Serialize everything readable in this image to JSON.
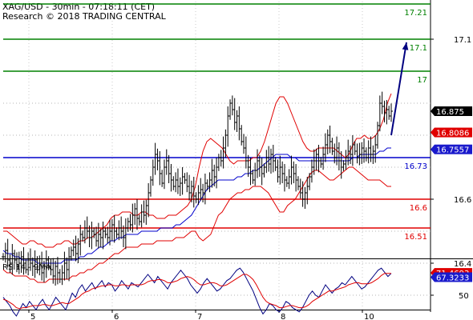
{
  "header": {
    "line1": "XAG/USD - 30min - 07:18:11 (CET)",
    "line2": "Research © 2018 TRADING CENTRAL"
  },
  "chart_data": [
    {
      "type": "candlestick",
      "title": "XAG/USD - 30min - 07:18:11 (CET)",
      "subtitle": "Research © 2018 TRADING CENTRAL",
      "x_tick_labels": [
        "5",
        "6",
        "7",
        "8",
        "10"
      ],
      "y_tick_labels": [
        "17.1",
        "16.6",
        "16.4"
      ],
      "ylim": [
        16.24,
        17.26
      ],
      "grid": true,
      "price_series": [
        16.42,
        16.44,
        16.41,
        16.4,
        16.43,
        16.41,
        16.39,
        16.4,
        16.42,
        16.4,
        16.38,
        16.41,
        16.4,
        16.39,
        16.41,
        16.38,
        16.4,
        16.37,
        16.39,
        16.41,
        16.39,
        16.38,
        16.36,
        16.39,
        16.37,
        16.35,
        16.37,
        16.4,
        16.38,
        16.42,
        16.44,
        16.45,
        16.43,
        16.46,
        16.49,
        16.48,
        16.51,
        16.5,
        16.48,
        16.5,
        16.49,
        16.47,
        16.49,
        16.48,
        16.5,
        16.49,
        16.48,
        16.5,
        16.52,
        16.5,
        16.49,
        16.51,
        16.5,
        16.48,
        16.51,
        16.53,
        16.52,
        16.55,
        16.57,
        16.54,
        16.53,
        16.56,
        16.55,
        16.58,
        16.62,
        16.66,
        16.7,
        16.74,
        16.72,
        16.68,
        16.65,
        16.7,
        16.72,
        16.68,
        16.66,
        16.64,
        16.66,
        16.64,
        16.65,
        16.67,
        16.66,
        16.64,
        16.62,
        16.64,
        16.61,
        16.6,
        16.62,
        16.63,
        16.62,
        16.65,
        16.64,
        16.66,
        16.69,
        16.67,
        16.7,
        16.73,
        16.72,
        16.76,
        16.8,
        16.86,
        16.9,
        16.88,
        16.84,
        16.86,
        16.82,
        16.78,
        16.76,
        16.72,
        16.7,
        16.68,
        16.66,
        16.69,
        16.72,
        16.7,
        16.68,
        16.7,
        16.73,
        16.71,
        16.74,
        16.72,
        16.7,
        16.67,
        16.7,
        16.68,
        16.66,
        16.65,
        16.67,
        16.7,
        16.68,
        16.66,
        16.64,
        16.62,
        16.6,
        16.62,
        16.64,
        16.67,
        16.7,
        16.72,
        16.74,
        16.72,
        16.71,
        16.74,
        16.77,
        16.8,
        16.78,
        16.75,
        16.73,
        16.76,
        16.72,
        16.7,
        16.71,
        16.73,
        16.75,
        16.74,
        16.77,
        16.75,
        16.73,
        16.74,
        16.76,
        16.75,
        16.73,
        16.76,
        16.74,
        16.75,
        16.77,
        16.83,
        16.9,
        16.89,
        16.87,
        16.88,
        16.86,
        16.875
      ],
      "bollinger": {
        "upper": [
          16.5,
          16.5,
          16.49,
          16.48,
          16.47,
          16.46,
          16.46,
          16.47,
          16.47,
          16.46,
          16.46,
          16.45,
          16.45,
          16.45,
          16.46,
          16.46,
          16.47,
          16.47,
          16.46,
          16.46,
          16.47,
          16.47,
          16.48,
          16.48,
          16.49,
          16.5,
          16.51,
          16.52,
          16.54,
          16.55,
          16.55,
          16.56,
          16.56,
          16.56,
          16.55,
          16.55,
          16.56,
          16.56,
          16.55,
          16.55,
          16.54,
          16.54,
          16.54,
          16.55,
          16.55,
          16.55,
          16.56,
          16.57,
          16.58,
          16.6,
          16.64,
          16.7,
          16.75,
          16.78,
          16.79,
          16.78,
          16.77,
          16.76,
          16.74,
          16.72,
          16.71,
          16.72,
          16.72,
          16.72,
          16.72,
          16.73,
          16.73,
          16.75,
          16.78,
          16.82,
          16.86,
          16.9,
          16.92,
          16.92,
          16.9,
          16.87,
          16.84,
          16.81,
          16.78,
          16.76,
          16.75,
          16.75,
          16.76,
          16.76,
          16.76,
          16.76,
          16.76,
          16.75,
          16.74,
          16.73,
          16.74,
          16.77,
          16.79,
          16.79,
          16.8,
          16.79,
          16.79,
          16.8,
          16.82,
          16.85,
          16.9,
          16.93
        ],
        "mid": [
          16.44,
          16.43,
          16.43,
          16.42,
          16.42,
          16.41,
          16.41,
          16.41,
          16.41,
          16.4,
          16.4,
          16.4,
          16.4,
          16.4,
          16.4,
          16.4,
          16.41,
          16.41,
          16.41,
          16.41,
          16.42,
          16.42,
          16.43,
          16.43,
          16.44,
          16.45,
          16.45,
          16.46,
          16.47,
          16.47,
          16.48,
          16.48,
          16.49,
          16.49,
          16.49,
          16.49,
          16.5,
          16.5,
          16.5,
          16.5,
          16.5,
          16.51,
          16.51,
          16.51,
          16.51,
          16.52,
          16.52,
          16.53,
          16.54,
          16.55,
          16.57,
          16.59,
          16.61,
          16.63,
          16.64,
          16.65,
          16.66,
          16.66,
          16.66,
          16.66,
          16.66,
          16.67,
          16.67,
          16.68,
          16.68,
          16.69,
          16.69,
          16.7,
          16.71,
          16.72,
          16.73,
          16.74,
          16.74,
          16.74,
          16.74,
          16.73,
          16.73,
          16.72,
          16.72,
          16.72,
          16.72,
          16.72,
          16.72,
          16.72,
          16.72,
          16.72,
          16.72,
          16.72,
          16.72,
          16.72,
          16.72,
          16.73,
          16.73,
          16.74,
          16.74,
          16.74,
          16.74,
          16.74,
          16.75,
          16.75,
          16.76,
          16.76
        ],
        "lower": [
          16.38,
          16.37,
          16.37,
          16.36,
          16.36,
          16.36,
          16.36,
          16.35,
          16.35,
          16.34,
          16.34,
          16.34,
          16.35,
          16.35,
          16.35,
          16.35,
          16.35,
          16.35,
          16.36,
          16.36,
          16.37,
          16.37,
          16.38,
          16.38,
          16.39,
          16.4,
          16.4,
          16.41,
          16.42,
          16.43,
          16.43,
          16.44,
          16.45,
          16.45,
          16.45,
          16.45,
          16.46,
          16.46,
          16.46,
          16.46,
          16.47,
          16.47,
          16.47,
          16.47,
          16.47,
          16.48,
          16.48,
          16.48,
          16.49,
          16.5,
          16.5,
          16.48,
          16.47,
          16.48,
          16.49,
          16.52,
          16.55,
          16.56,
          16.58,
          16.6,
          16.61,
          16.62,
          16.62,
          16.63,
          16.63,
          16.64,
          16.64,
          16.64,
          16.63,
          16.62,
          16.6,
          16.58,
          16.56,
          16.56,
          16.58,
          16.59,
          16.6,
          16.62,
          16.64,
          16.66,
          16.68,
          16.69,
          16.69,
          16.68,
          16.67,
          16.66,
          16.66,
          16.67,
          16.68,
          16.69,
          16.7,
          16.7,
          16.69,
          16.68,
          16.67,
          16.66,
          16.66,
          16.66,
          16.66,
          16.65,
          16.64,
          16.64
        ]
      },
      "horizontal_levels": [
        {
          "value": 17.21,
          "label": "17.21",
          "color": "#008000"
        },
        {
          "value": 17.1,
          "label": "17.1",
          "color": "#008000"
        },
        {
          "value": 17.0,
          "label": "17",
          "color": "#008000"
        },
        {
          "value": 16.73,
          "label": "16.73",
          "color": "#0000cc"
        },
        {
          "value": 16.6,
          "label": "16.6",
          "color": "#e00000"
        },
        {
          "value": 16.51,
          "label": "16.51",
          "color": "#e00000"
        }
      ],
      "price_badges": [
        {
          "value": 16.875,
          "label": "16.875",
          "bg": "#000000",
          "fg": "#ffffff"
        },
        {
          "value": 16.8086,
          "label": "16.8086",
          "bg": "#e00000",
          "fg": "#ffffff"
        },
        {
          "value": 16.7557,
          "label": "16.7557",
          "bg": "#1a1acc",
          "fg": "#ffffff"
        }
      ],
      "projection_arrow": {
        "from": 16.8,
        "to": 17.09,
        "color": "#000080"
      }
    },
    {
      "type": "line",
      "title": "RSI14 - 9MA",
      "ylim": [
        20,
        90
      ],
      "y_tick_labels": [
        "50"
      ],
      "series": [
        {
          "values": [
            48,
            44,
            40,
            34,
            30,
            36,
            42,
            38,
            44,
            40,
            36,
            42,
            46,
            40,
            36,
            42,
            48,
            44,
            40,
            36,
            44,
            52,
            48,
            56,
            60,
            54,
            58,
            62,
            56,
            60,
            64,
            58,
            62,
            60,
            54,
            58,
            64,
            60,
            56,
            62,
            60,
            58,
            62,
            66,
            70,
            66,
            62,
            68,
            64,
            60,
            56,
            62,
            66,
            70,
            74,
            70,
            66,
            60,
            56,
            52,
            56,
            62,
            66,
            62,
            58,
            54,
            56,
            60,
            64,
            66,
            70,
            74,
            76,
            72,
            66,
            60,
            54,
            46,
            38,
            32,
            36,
            42,
            40,
            36,
            34,
            38,
            44,
            42,
            38,
            36,
            34,
            38,
            44,
            50,
            54,
            50,
            48,
            54,
            60,
            56,
            52,
            56,
            58,
            62,
            60,
            64,
            68,
            64,
            60,
            56,
            58,
            62,
            66,
            70,
            74,
            76,
            72,
            68,
            71
          ],
          "color": "#000080"
        },
        {
          "values": [
            46,
            45,
            43,
            41,
            38,
            37,
            38,
            38,
            39,
            40,
            40,
            40,
            41,
            41,
            40,
            40,
            41,
            42,
            43,
            42,
            42,
            44,
            46,
            48,
            51,
            53,
            54,
            56,
            57,
            58,
            59,
            59,
            60,
            60,
            59,
            59,
            60,
            60,
            59,
            60,
            60,
            60,
            60,
            61,
            63,
            64,
            64,
            65,
            65,
            64,
            62,
            62,
            63,
            64,
            66,
            67,
            68,
            67,
            65,
            62,
            60,
            60,
            61,
            62,
            62,
            61,
            59,
            59,
            60,
            62,
            64,
            66,
            68,
            70,
            70,
            68,
            65,
            60,
            54,
            48,
            44,
            42,
            41,
            40,
            38,
            38,
            39,
            40,
            40,
            39,
            38,
            38,
            39,
            41,
            44,
            46,
            48,
            50,
            52,
            54,
            54,
            55,
            56,
            57,
            58,
            60,
            61,
            62,
            62,
            61,
            61,
            61,
            62,
            64,
            66,
            69,
            71,
            71,
            71
          ],
          "color": "#e00000"
        }
      ],
      "price_badges": [
        {
          "value": 71.4693,
          "label": "71.4693",
          "bg": "#e00000",
          "fg": "#ffffff"
        },
        {
          "value": 67.3233,
          "label": "67.3233",
          "bg": "#1a1acc",
          "fg": "#ffffff"
        }
      ]
    }
  ]
}
